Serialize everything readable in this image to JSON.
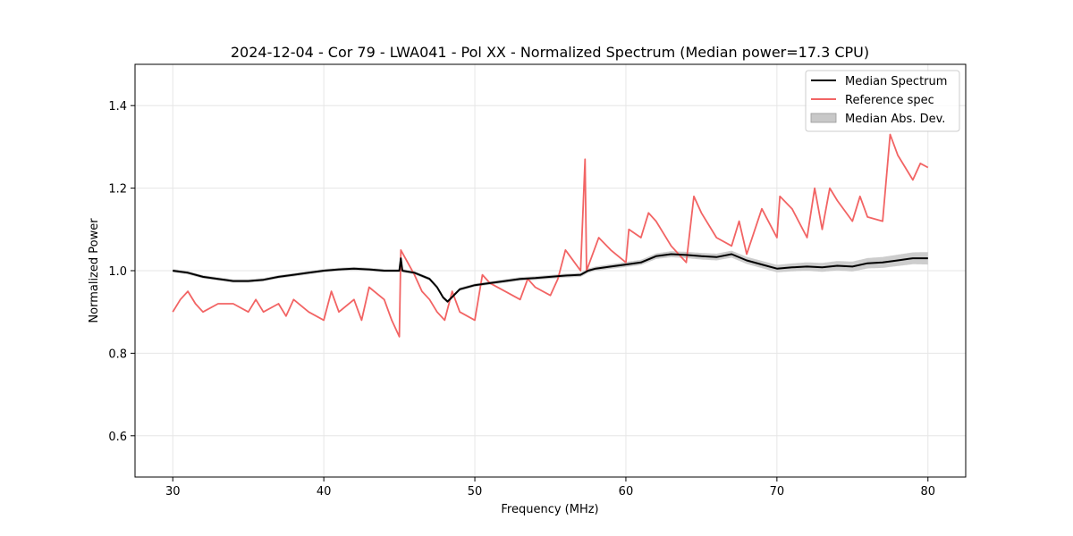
{
  "chart_data": {
    "type": "line",
    "title": "2024-12-04 - Cor 79 - LWA041 - Pol XX - Normalized Spectrum (Median power=17.3 CPU)",
    "xlabel": "Frequency (MHz)",
    "ylabel": "Normalized Power",
    "xlim": [
      27.5,
      82.5
    ],
    "ylim": [
      0.5,
      1.5
    ],
    "xticks": [
      30,
      40,
      50,
      60,
      70,
      80
    ],
    "yticks": [
      0.6,
      0.8,
      1.0,
      1.2,
      1.4
    ],
    "xtick_labels": [
      "30",
      "40",
      "50",
      "60",
      "70",
      "80"
    ],
    "ytick_labels": [
      "0.6",
      "0.8",
      "1.0",
      "1.2",
      "1.4"
    ],
    "grid": true,
    "legend_position": "top-right",
    "legend": [
      "Median Spectrum",
      "Reference spec",
      "Median Abs. Dev."
    ],
    "series": [
      {
        "name": "Median Spectrum",
        "color": "#000000",
        "x": [
          30,
          31,
          32,
          33,
          34,
          35,
          36,
          37,
          38,
          39,
          40,
          41,
          42,
          43,
          44,
          45,
          45.1,
          45.2,
          46,
          47,
          47.5,
          47.9,
          48.2,
          49,
          50,
          51,
          52,
          53,
          54,
          55,
          56,
          57,
          57.5,
          58,
          59,
          60,
          61,
          62,
          63,
          64,
          65,
          66,
          67,
          68,
          69,
          70,
          71,
          72,
          73,
          74,
          75,
          76,
          77,
          78,
          79,
          80
        ],
        "y": [
          1.0,
          0.995,
          0.985,
          0.98,
          0.975,
          0.975,
          0.978,
          0.985,
          0.99,
          0.995,
          1.0,
          1.003,
          1.005,
          1.003,
          1.0,
          1.0,
          1.03,
          1.0,
          0.995,
          0.98,
          0.96,
          0.935,
          0.925,
          0.955,
          0.965,
          0.97,
          0.975,
          0.98,
          0.982,
          0.985,
          0.988,
          0.99,
          1.0,
          1.005,
          1.01,
          1.015,
          1.02,
          1.035,
          1.04,
          1.038,
          1.035,
          1.033,
          1.04,
          1.025,
          1.015,
          1.005,
          1.008,
          1.01,
          1.008,
          1.012,
          1.01,
          1.018,
          1.02,
          1.025,
          1.03,
          1.03
        ]
      },
      {
        "name": "Reference spec",
        "color": "#f26464",
        "x": [
          30,
          30.5,
          31,
          31.5,
          32,
          33,
          34,
          35,
          35.5,
          36,
          37,
          37.5,
          38,
          39,
          40,
          40.5,
          41,
          42,
          42.5,
          43,
          44,
          44.5,
          45,
          45.1,
          46,
          46.5,
          47,
          47.5,
          48,
          48.5,
          49,
          50,
          50.5,
          51,
          52,
          53,
          53.5,
          54,
          55,
          55.5,
          56,
          57,
          57.3,
          57.4,
          58,
          58.2,
          59,
          60,
          60.2,
          61,
          61.5,
          62,
          63,
          64,
          64.5,
          65,
          66,
          67,
          67.5,
          68,
          69,
          70,
          70.2,
          71,
          72,
          72.5,
          73,
          73.5,
          74,
          75,
          75.5,
          76,
          77,
          77.5,
          78,
          79,
          79.5,
          80
        ],
        "y": [
          0.9,
          0.93,
          0.95,
          0.92,
          0.9,
          0.92,
          0.92,
          0.9,
          0.93,
          0.9,
          0.92,
          0.89,
          0.93,
          0.9,
          0.88,
          0.95,
          0.9,
          0.93,
          0.88,
          0.96,
          0.93,
          0.88,
          0.84,
          1.05,
          0.99,
          0.95,
          0.93,
          0.9,
          0.88,
          0.95,
          0.9,
          0.88,
          0.99,
          0.97,
          0.95,
          0.93,
          0.98,
          0.96,
          0.94,
          0.98,
          1.05,
          1.0,
          1.27,
          1.0,
          1.06,
          1.08,
          1.05,
          1.02,
          1.1,
          1.08,
          1.14,
          1.12,
          1.06,
          1.02,
          1.18,
          1.14,
          1.08,
          1.06,
          1.12,
          1.04,
          1.15,
          1.08,
          1.18,
          1.15,
          1.08,
          1.2,
          1.1,
          1.2,
          1.17,
          1.12,
          1.18,
          1.13,
          1.12,
          1.33,
          1.28,
          1.22,
          1.26,
          1.25
        ]
      }
    ],
    "band": {
      "name": "Median Abs. Dev.",
      "color": "#c8c8c8",
      "of_series": "Median Spectrum",
      "x": [
        30,
        40,
        50,
        57,
        60,
        65,
        70,
        75,
        80
      ],
      "halfwidth": [
        0.004,
        0.004,
        0.004,
        0.005,
        0.006,
        0.008,
        0.009,
        0.012,
        0.015
      ]
    }
  }
}
